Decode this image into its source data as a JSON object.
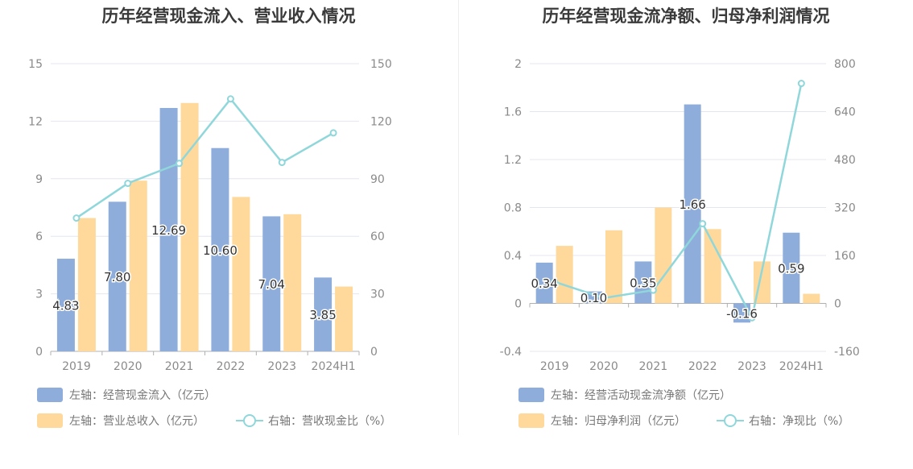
{
  "colors": {
    "bar_primary": "#8eadda",
    "bar_secondary": "#fed99b",
    "line": "#8fd7da",
    "grid": "#e4e6ef",
    "tick": "#8a8a8a",
    "label": "#333333"
  },
  "chart_data": [
    {
      "type": "bar",
      "title": "历年经营现金流入、营业收入情况",
      "categories": [
        "2019",
        "2020",
        "2021",
        "2022",
        "2023",
        "2024H1"
      ],
      "left_axis": {
        "ylim": [
          0,
          15
        ],
        "ticks": [
          "0",
          "3",
          "6",
          "9",
          "12",
          "15"
        ]
      },
      "right_axis": {
        "ylim": [
          0,
          150
        ],
        "ticks": [
          "0",
          "30",
          "60",
          "90",
          "120",
          "150"
        ]
      },
      "series": [
        {
          "name": "左轴：经营现金流入（亿元）",
          "type": "bar",
          "axis": "left",
          "values": [
            4.83,
            7.8,
            12.69,
            10.6,
            7.04,
            3.85
          ],
          "labels": [
            "4.83",
            "7.80",
            "12.69",
            "10.60",
            "7.04",
            "3.85"
          ]
        },
        {
          "name": "左轴：营业总收入（亿元）",
          "type": "bar",
          "axis": "left",
          "values": [
            6.95,
            8.9,
            12.95,
            8.05,
            7.15,
            3.38
          ]
        },
        {
          "name": "右轴：营收现金比（%）",
          "type": "line",
          "axis": "right",
          "values": [
            69.5,
            87.6,
            98.0,
            131.6,
            98.5,
            113.9
          ]
        }
      ],
      "grid": true,
      "legend_position": "bottom-left"
    },
    {
      "type": "bar",
      "title": "历年经营现金流净额、归母净利润情况",
      "categories": [
        "2019",
        "2020",
        "2021",
        "2022",
        "2023",
        "2024H1"
      ],
      "left_axis": {
        "ylim": [
          -0.4,
          2
        ],
        "ticks": [
          "-0.4",
          "0",
          "0.4",
          "0.8",
          "1.2",
          "1.6",
          "2"
        ]
      },
      "right_axis": {
        "ylim": [
          -160,
          800
        ],
        "ticks": [
          "-160",
          "0",
          "160",
          "320",
          "480",
          "640",
          "800"
        ]
      },
      "series": [
        {
          "name": "左轴：经营活动现金流净额（亿元）",
          "type": "bar",
          "axis": "left",
          "values": [
            0.34,
            0.1,
            0.35,
            1.66,
            -0.16,
            0.59
          ],
          "labels": [
            "0.34",
            "0.10",
            "0.35",
            "1.66",
            "-0.16",
            "0.59"
          ]
        },
        {
          "name": "左轴：归母净利润（亿元）",
          "type": "bar",
          "axis": "left",
          "values": [
            0.48,
            0.61,
            0.8,
            0.62,
            0.35,
            0.08
          ]
        },
        {
          "name": "右轴：净现比（%）",
          "type": "line",
          "axis": "right",
          "values": [
            72,
            18,
            44,
            266,
            -48,
            734
          ]
        }
      ],
      "grid": true,
      "legend_position": "bottom-left"
    }
  ]
}
